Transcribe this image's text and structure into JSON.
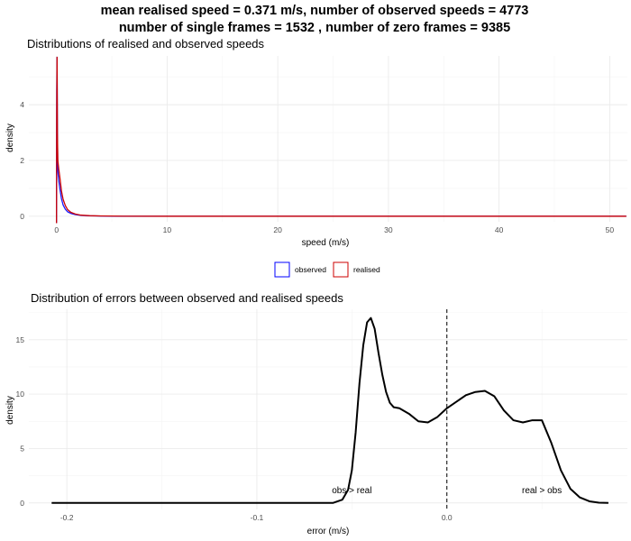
{
  "suptitle": {
    "line1": "mean realised speed = 0.371 m/s, number of observed speeds = 4773",
    "line2": "number of single frames = 1532 , number of zero frames = 9385"
  },
  "legend": {
    "observed_label": "observed",
    "realised_label": "realised"
  },
  "chart_data": [
    {
      "type": "line",
      "title": "Distributions of realised and observed speeds",
      "xlabel": "speed (m/s)",
      "ylabel": "density",
      "xlim": [
        -2.5,
        51.6
      ],
      "ylim": [
        -0.2,
        5.75
      ],
      "x_ticks": [
        0,
        10,
        20,
        30,
        40,
        50
      ],
      "x_tick_labels": [
        "0",
        "10",
        "20",
        "30",
        "40",
        "50"
      ],
      "y_ticks": [
        0,
        2,
        4
      ],
      "y_tick_labels": [
        "0",
        "2",
        "4"
      ],
      "grid": true,
      "legend_position": "bottom",
      "series": [
        {
          "name": "observed",
          "color": "#0000ff",
          "x": [
            0.0,
            0.02,
            0.05,
            0.08,
            0.12,
            0.2,
            0.3,
            0.45,
            0.6,
            0.8,
            1.0,
            1.3,
            1.7,
            2.2,
            3.0,
            4.0,
            6.0,
            10.0,
            51.5
          ],
          "y": [
            -0.25,
            4.5,
            5.7,
            3.0,
            1.6,
            1.3,
            1.0,
            0.62,
            0.4,
            0.25,
            0.16,
            0.1,
            0.06,
            0.03,
            0.015,
            0.007,
            0.002,
            0.0,
            0.0
          ]
        },
        {
          "name": "realised",
          "color": "#cc0000",
          "x": [
            0.0,
            0.02,
            0.05,
            0.08,
            0.12,
            0.2,
            0.3,
            0.45,
            0.6,
            0.8,
            1.0,
            1.3,
            1.7,
            2.2,
            3.0,
            4.0,
            6.0,
            10.0,
            51.5
          ],
          "y": [
            -0.25,
            3.5,
            5.7,
            3.0,
            2.0,
            1.7,
            1.4,
            0.9,
            0.6,
            0.38,
            0.24,
            0.14,
            0.08,
            0.04,
            0.02,
            0.01,
            0.003,
            0.0,
            0.0
          ]
        }
      ]
    },
    {
      "type": "line",
      "title": "Distribution of errors between observed and realised speeds",
      "xlabel": "error (m/s)",
      "ylabel": "density",
      "xlim": [
        -0.22,
        0.095
      ],
      "ylim": [
        -0.6,
        17.8
      ],
      "x_ticks": [
        -0.2,
        -0.1,
        0.0
      ],
      "x_tick_labels": [
        "-0.2",
        "-0.1",
        "0.0"
      ],
      "y_ticks": [
        0,
        5,
        10,
        15
      ],
      "y_tick_labels": [
        "0",
        "5",
        "10",
        "15"
      ],
      "grid": true,
      "vline": 0.0,
      "series": [
        {
          "name": "",
          "color": "#000000",
          "x": [
            -0.208,
            -0.1,
            -0.06,
            -0.055,
            -0.052,
            -0.05,
            -0.048,
            -0.046,
            -0.044,
            -0.042,
            -0.04,
            -0.038,
            -0.036,
            -0.034,
            -0.032,
            -0.03,
            -0.028,
            -0.025,
            -0.02,
            -0.015,
            -0.01,
            -0.005,
            0.0,
            0.005,
            0.01,
            0.015,
            0.02,
            0.025,
            0.03,
            0.035,
            0.04,
            0.045,
            0.05,
            0.055,
            0.06,
            0.065,
            0.07,
            0.075,
            0.08,
            0.085
          ],
          "y": [
            0,
            0,
            0,
            0.3,
            1.2,
            3.0,
            6.5,
            11.0,
            14.5,
            16.6,
            17.0,
            16.0,
            13.8,
            11.8,
            10.2,
            9.2,
            8.8,
            8.7,
            8.2,
            7.5,
            7.4,
            7.9,
            8.7,
            9.3,
            9.9,
            10.2,
            10.3,
            9.8,
            8.5,
            7.6,
            7.4,
            7.6,
            7.6,
            5.5,
            3.0,
            1.3,
            0.5,
            0.15,
            0.02,
            0.0
          ]
        }
      ],
      "annotations": [
        {
          "text": "obs > real",
          "x": -0.05,
          "y": 0.9
        },
        {
          "text": "real > obs",
          "x": 0.05,
          "y": 0.9
        }
      ]
    }
  ]
}
